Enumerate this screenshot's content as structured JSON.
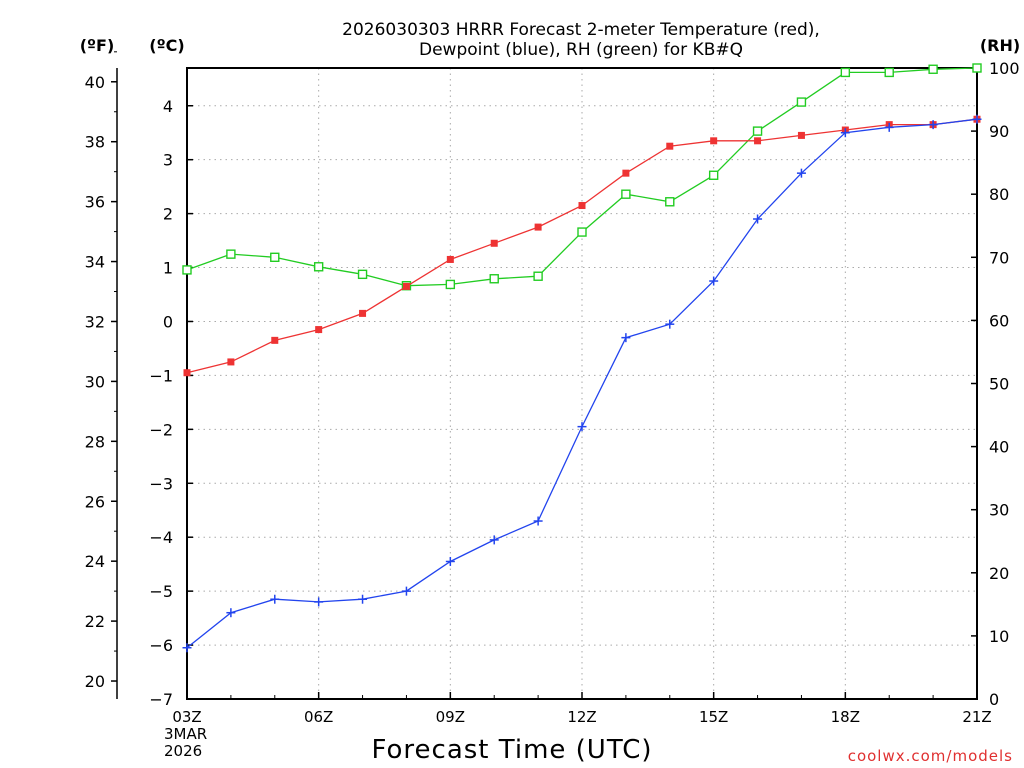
{
  "chart_data": {
    "type": "line",
    "title_line1": "2026030303 HRRR Forecast 2-meter Temperature (red),",
    "title_line2": "Dewpoint (blue), RH (green) for KB#Q",
    "unit_left_f": "(ºF)",
    "unit_left_c": "(ºC)",
    "unit_right": "(RH)",
    "xlabel": "Forecast Time (UTC)",
    "x_start_sub1": "3MAR",
    "x_start_sub2": "2026",
    "credit": "coolwx.com/models",
    "x_tick_labels": [
      "03Z",
      "06Z",
      "09Z",
      "12Z",
      "15Z",
      "18Z",
      "21Z"
    ],
    "x_tick_hours": [
      3,
      6,
      9,
      12,
      15,
      18,
      21
    ],
    "xlim": [
      3,
      21
    ],
    "ylim_c": [
      -7,
      4.7
    ],
    "ylim_f_ticks": [
      "20",
      "22",
      "24",
      "26",
      "28",
      "30",
      "32",
      "34",
      "36",
      "38",
      "40"
    ],
    "y_c_ticks": [
      "−7",
      "−6",
      "−5",
      "−4",
      "−3",
      "−2",
      "−1",
      "0",
      "1",
      "2",
      "3",
      "4"
    ],
    "y_rh_ticks": [
      "0",
      "10",
      "20",
      "30",
      "40",
      "50",
      "60",
      "70",
      "80",
      "90",
      "100"
    ],
    "rh_range": [
      0,
      100
    ],
    "grid": true,
    "x": [
      3,
      4,
      5,
      6,
      7,
      8,
      9,
      10,
      11,
      12,
      13,
      14,
      15,
      16,
      17,
      18,
      19,
      20,
      21
    ],
    "series": [
      {
        "name": "Temperature",
        "unit": "°C",
        "color": "#ee3333",
        "marker": "filled-square",
        "values": [
          -0.95,
          -0.75,
          -0.35,
          -0.15,
          0.15,
          0.65,
          1.15,
          1.45,
          1.75,
          2.15,
          2.75,
          3.25,
          3.35,
          3.35,
          3.45,
          3.55,
          3.65,
          3.65,
          3.75
        ]
      },
      {
        "name": "Dewpoint",
        "unit": "°C",
        "color": "#2244ee",
        "marker": "plus",
        "values": [
          -6.05,
          -5.4,
          -5.15,
          -5.2,
          -5.15,
          -5.0,
          -4.45,
          -4.05,
          -3.7,
          -1.95,
          -0.3,
          -0.05,
          0.75,
          1.9,
          2.75,
          3.5,
          3.6,
          3.65,
          3.75
        ]
      },
      {
        "name": "RH",
        "unit": "%",
        "color": "#22cc22",
        "marker": "open-square",
        "axis": "right",
        "values": [
          68,
          70.5,
          70,
          68.5,
          67.3,
          65.5,
          65.7,
          66.6,
          67,
          74,
          80,
          78.8,
          83,
          90,
          94.6,
          99.3,
          99.3,
          99.8,
          100
        ]
      }
    ]
  }
}
